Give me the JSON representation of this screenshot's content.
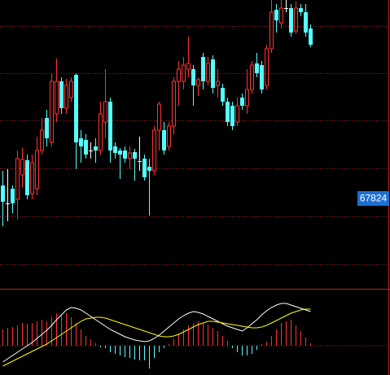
{
  "chart_data": [
    {
      "type": "candlestick",
      "open": [
        67984,
        67764,
        67944,
        67814,
        68114,
        68294,
        67884,
        67944,
        68414,
        68814,
        68514,
        68864,
        69264,
        68934,
        69064,
        69344,
        68564,
        68544,
        68414,
        68464,
        68414,
        68764,
        69014,
        68464,
        68414,
        68414,
        68314,
        68394,
        68284,
        68314,
        68214,
        68164,
        68664,
        68664,
        68464,
        68714,
        69264,
        69264,
        69414,
        69414,
        69214,
        69564,
        69264,
        69534,
        69214,
        69184,
        69014,
        68964,
        68764,
        69064,
        68964,
        69164,
        69484,
        69464,
        69214,
        69664,
        70144,
        69984,
        70164,
        70164,
        69884,
        70164,
        70114,
        69914
      ],
      "high": [
        68164,
        68184,
        67984,
        68414,
        68444,
        68364,
        68364,
        68584,
        68814,
        68914,
        69364,
        69544,
        69314,
        69294,
        69314,
        69364,
        68664,
        68614,
        68514,
        68564,
        69014,
        69414,
        69064,
        68514,
        68444,
        68464,
        68464,
        68434,
        68584,
        68364,
        68314,
        68714,
        69014,
        68764,
        68764,
        69314,
        69514,
        69564,
        69814,
        69464,
        69314,
        69614,
        69564,
        69584,
        69414,
        69234,
        69064,
        69014,
        69064,
        69114,
        69414,
        69514,
        69614,
        69514,
        69714,
        70264,
        70214,
        70264,
        70264,
        70214,
        70244,
        70214,
        70214,
        69964
      ],
      "low": [
        67484,
        67544,
        67644,
        67564,
        67964,
        67814,
        67814,
        67864,
        68364,
        68464,
        68464,
        68764,
        68864,
        68864,
        69014,
        68184,
        68264,
        68314,
        68314,
        68264,
        68364,
        68564,
        68264,
        68314,
        68064,
        68264,
        68184,
        68044,
        68164,
        68044,
        67614,
        68114,
        68414,
        68364,
        68414,
        68614,
        68964,
        69164,
        69314,
        68964,
        69084,
        69164,
        69214,
        69114,
        69064,
        68964,
        68714,
        68664,
        68714,
        68914,
        68864,
        69114,
        69314,
        69114,
        69164,
        69614,
        69864,
        69914,
        70114,
        69814,
        69844,
        70064,
        69814,
        69684
      ],
      "close": [
        67784,
        67764,
        67764,
        68314,
        68304,
        67864,
        68264,
        68414,
        68664,
        68564,
        69264,
        69264,
        68934,
        69214,
        69264,
        68514,
        68464,
        68364,
        68414,
        68414,
        68864,
        69014,
        68414,
        68384,
        68364,
        68314,
        68384,
        68314,
        68284,
        68084,
        68164,
        68664,
        68984,
        68414,
        68714,
        69264,
        69414,
        69464,
        69484,
        69214,
        69284,
        69264,
        69484,
        69184,
        69264,
        69014,
        68764,
        68714,
        68964,
        68964,
        69164,
        69464,
        69364,
        69164,
        69664,
        70114,
        70014,
        70164,
        70164,
        69864,
        70164,
        70114,
        69864,
        69714
      ],
      "ylim": [
        66714,
        70264
      ],
      "last_price": 67824,
      "up_color": "#ff3232",
      "down_color": "#54ffff",
      "flat_color": "#ffffff"
    },
    {
      "type": "macd",
      "histogram": [
        20,
        22,
        23,
        25,
        28,
        27,
        28,
        30,
        32,
        30,
        35,
        40,
        38,
        40,
        35,
        28,
        20,
        12,
        8,
        3,
        -2,
        -3,
        -8,
        -10,
        -12,
        -14,
        -15,
        -17,
        -18,
        -18,
        -28,
        -15,
        -8,
        -3,
        2,
        8,
        15,
        20,
        25,
        28,
        30,
        28,
        26,
        22,
        18,
        12,
        6,
        -3,
        -8,
        -12,
        -12,
        -10,
        -5,
        2,
        5,
        12,
        20,
        28,
        30,
        32,
        25,
        18,
        10,
        3
      ],
      "dif": [
        -20,
        -16,
        -12,
        -8,
        -4,
        0,
        4,
        9,
        14,
        19,
        25,
        32,
        38,
        44,
        47,
        46,
        44,
        40,
        36,
        32,
        28,
        24,
        20,
        17,
        14,
        11,
        9,
        7,
        6,
        5,
        6,
        9,
        13,
        18,
        23,
        28,
        33,
        37,
        40,
        42,
        41,
        39,
        36,
        33,
        30,
        27,
        24,
        22,
        20,
        18,
        22,
        27,
        32,
        38,
        43,
        47,
        50,
        52,
        52,
        50,
        48,
        46,
        44,
        42
      ],
      "dea": [
        -25,
        -22,
        -19,
        -16,
        -13,
        -10,
        -7,
        -4,
        -1,
        2,
        6,
        10,
        14,
        18,
        22,
        26,
        30,
        33,
        34,
        35,
        35,
        34,
        32,
        30,
        28,
        26,
        24,
        22,
        20,
        18,
        16,
        14,
        12,
        11,
        11,
        12,
        14,
        17,
        20,
        23,
        26,
        28,
        30,
        30,
        29,
        28,
        27,
        26,
        25,
        24,
        23,
        22,
        22,
        23,
        25,
        28,
        31,
        34,
        37,
        40,
        42,
        44,
        45,
        45
      ],
      "ylim": [
        -36,
        69
      ],
      "up_color": "#ff3232",
      "down_color": "#54ffff",
      "dif_color": "#ffffff",
      "dea_color": "#ffff00"
    }
  ]
}
